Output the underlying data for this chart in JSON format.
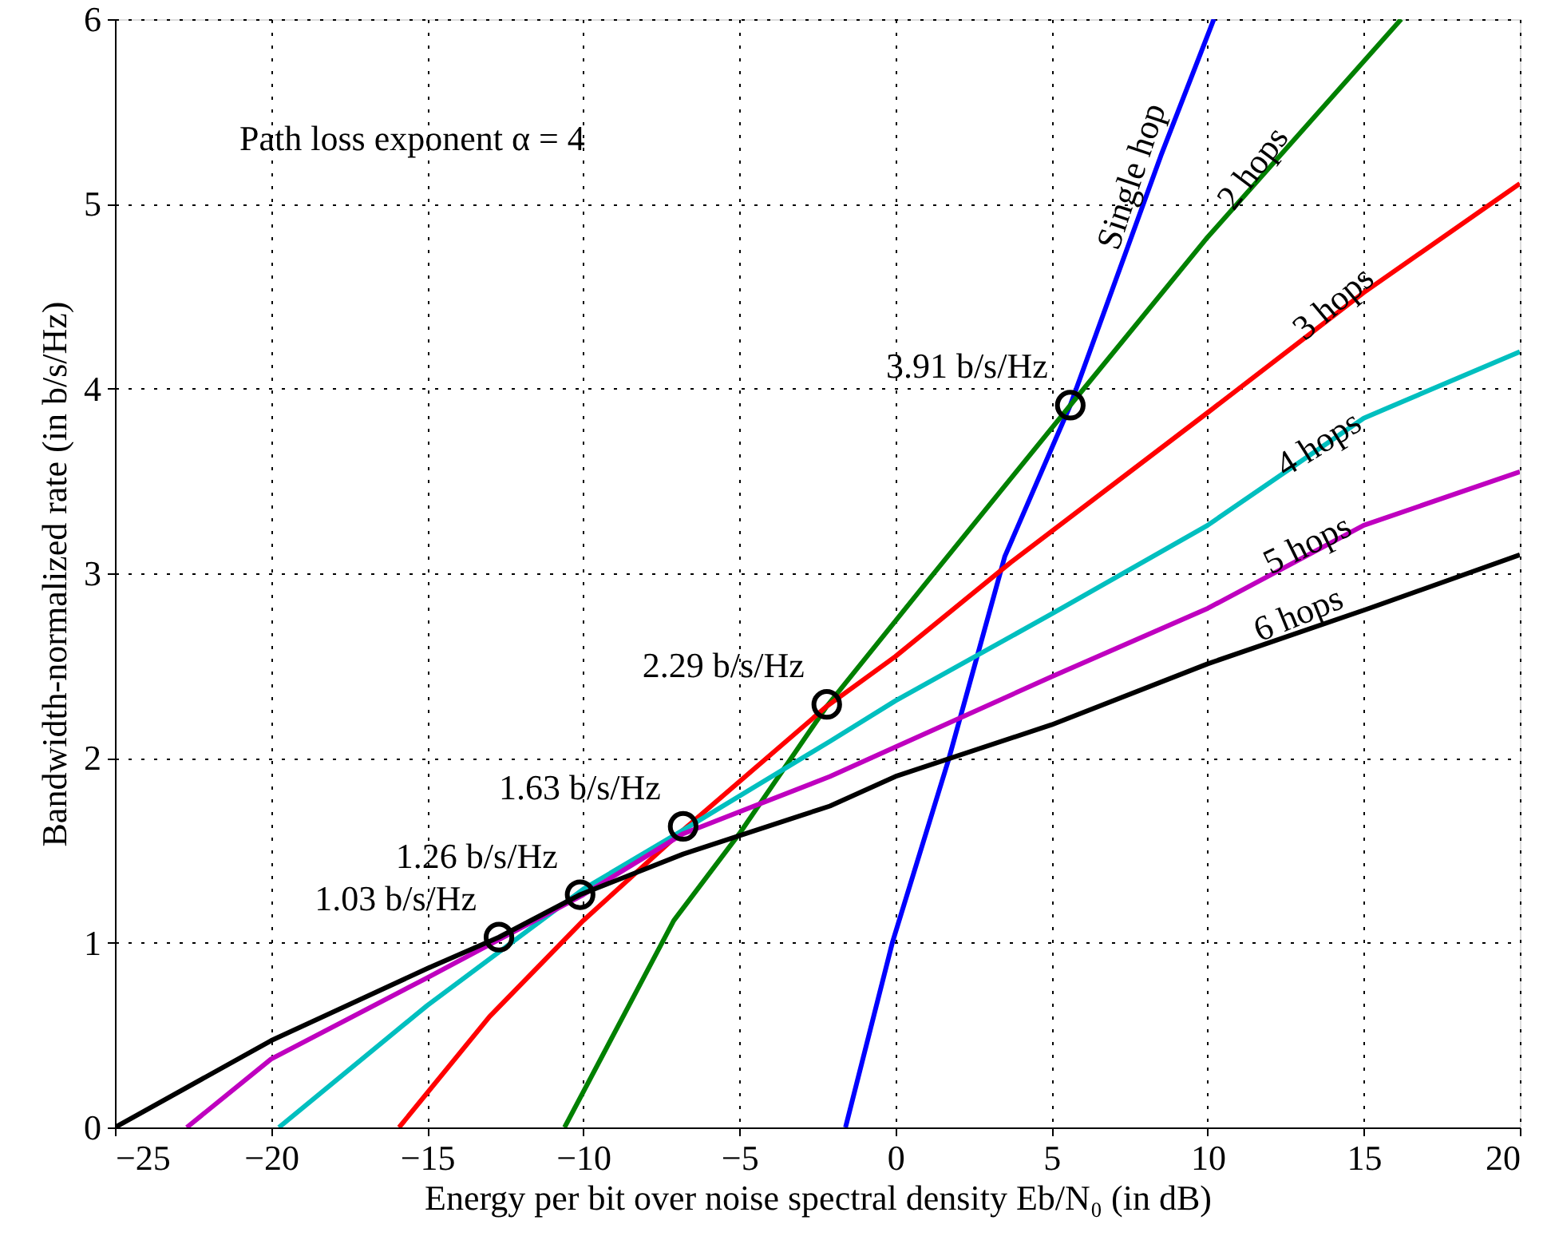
{
  "chart_data": {
    "type": "line",
    "xlabel": "Energy per bit over noise spectral density Eb/N₀ (in dB)",
    "ylabel": "Bandwidth-normalized rate (in b/s/Hz)",
    "xlim": [
      -25,
      20
    ],
    "xticks": [
      -25,
      -20,
      -15,
      -10,
      -5,
      0,
      5,
      10,
      15,
      20
    ],
    "ylim": [
      0,
      6
    ],
    "yticks": [
      0,
      1,
      2,
      3,
      4,
      5,
      6
    ],
    "grid": true,
    "line_style": "solid",
    "series": [
      {
        "name": "Single hop",
        "color": "#0000ff",
        "x": [
          -1.6,
          -0.1,
          1.7,
          3.5,
          5.6,
          8.5,
          10.2
        ],
        "values": [
          0,
          1.0,
          1.99,
          3.09,
          3.91,
          5.26,
          6.0
        ]
      },
      {
        "name": "2 hops",
        "color": "#008000",
        "x": [
          -10.6,
          -7.1,
          -5.0,
          -2.2,
          0.8,
          5.6,
          10.0,
          16.2
        ],
        "values": [
          0,
          1.12,
          1.59,
          2.28,
          2.91,
          3.91,
          4.82,
          6.0
        ]
      },
      {
        "name": "3 hops",
        "color": "#ff0000",
        "x": [
          -15.9,
          -13.0,
          -10.0,
          -6.8,
          -2.2,
          0,
          3.7,
          10.0,
          15.0,
          20.0
        ],
        "values": [
          0,
          0.6,
          1.12,
          1.61,
          2.28,
          2.55,
          3.06,
          3.87,
          4.52,
          5.11
        ]
      },
      {
        "name": "4 hops",
        "color": "#00bfbf",
        "x": [
          -19.75,
          -15.0,
          -10.0,
          -6.8,
          -2.1,
          0,
          5.0,
          10.0,
          15.0,
          20.0
        ],
        "values": [
          0,
          0.66,
          1.29,
          1.61,
          2.09,
          2.31,
          2.78,
          3.26,
          3.84,
          4.2
        ]
      },
      {
        "name": "5 hops",
        "color": "#bf00bf",
        "x": [
          -22.7,
          -20.0,
          -15.0,
          -10.0,
          -6.8,
          -2.1,
          0,
          5.0,
          10.0,
          15.0,
          20.0
        ],
        "values": [
          0,
          0.37,
          0.81,
          1.26,
          1.59,
          1.9,
          2.06,
          2.44,
          2.81,
          3.26,
          3.55
        ]
      },
      {
        "name": "6 hops",
        "color": "#000000",
        "x": [
          -25,
          -20,
          -15,
          -12.7,
          -10.1,
          -6.8,
          -2.1,
          0,
          5,
          10,
          15,
          20
        ],
        "values": [
          0,
          0.47,
          0.86,
          1.03,
          1.26,
          1.48,
          1.74,
          1.9,
          2.18,
          2.51,
          2.8,
          3.1
        ]
      },
      {
        "type": "scatter",
        "marker": "circle",
        "color": "#000000",
        "x": [
          -12.7,
          -10.1,
          -6.8,
          -2.2,
          5.6
        ],
        "values": [
          1.03,
          1.26,
          1.63,
          2.29,
          3.91
        ]
      }
    ],
    "annotations": [
      "Path loss exponent α = 4",
      {
        "text": "1.03 b/s/Hz",
        "x": -12.7,
        "y": 1.03
      },
      {
        "text": "1.26 b/s/Hz",
        "x": -10.1,
        "y": 1.26
      },
      {
        "text": "1.63 b/s/Hz",
        "x": -6.8,
        "y": 1.63
      },
      {
        "text": "2.29 b/s/Hz",
        "x": -2.2,
        "y": 2.29
      },
      {
        "text": "3.91 b/s/Hz",
        "x": 5.6,
        "y": 3.91
      }
    ]
  }
}
